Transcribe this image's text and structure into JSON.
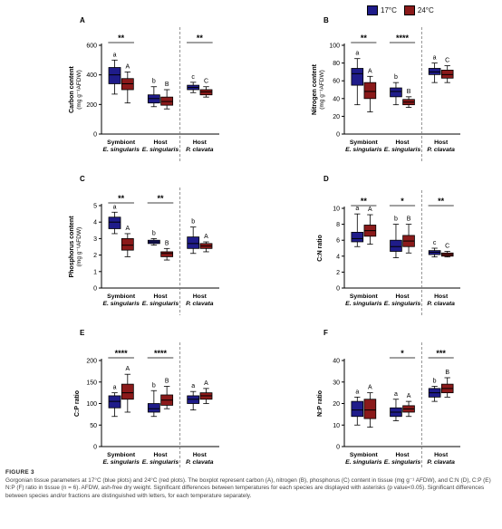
{
  "legend": [
    {
      "label": "17°C",
      "color": "#1f1c8a"
    },
    {
      "label": "24°C",
      "color": "#8b1a1a"
    }
  ],
  "caption": {
    "label": "FIGURE 3",
    "text": "Gorgonian tissue parameters at 17°C (blue plots) and 24°C (red plots). The boxplot represent carbon (A), nitrogen (B), phosphorus (C) content in tissue (mg g⁻¹ AFDW), and C:N (D), C:P (E) N:P (F) ratio in tissue (n = 6). AFDW, ash-free dry weight. Significant differences between temperatures for each species are displayed with asterisks (p value<0.05). Significant differences between species and/or fractions are distinguished with letters, for each temperature separately."
  },
  "chart_data": [
    {
      "panel": "A",
      "type": "box",
      "ylabel": [
        "Carbon content",
        "(mg g⁻¹AFDW)"
      ],
      "ylim": [
        0,
        600
      ],
      "yticks": [
        0,
        200,
        400,
        600
      ],
      "categories": [
        {
          "line1": "Symbiont",
          "line2": "E. singularis"
        },
        {
          "line1": "Host",
          "line2": "E. singularis"
        },
        {
          "line1": "Host",
          "line2": "P. clavata"
        }
      ],
      "series": [
        {
          "color": "#1f1c8a",
          "boxes": [
            [
              270,
              340,
              400,
              450,
              500
            ],
            [
              185,
              210,
              240,
              265,
              320
            ],
            [
              280,
              300,
              315,
              330,
              350
            ]
          ],
          "letters": [
            "a",
            "b",
            "c"
          ]
        },
        {
          "color": "#8b1a1a",
          "boxes": [
            [
              210,
              300,
              340,
              375,
              420
            ],
            [
              170,
              195,
              220,
              250,
              300
            ],
            [
              250,
              265,
              285,
              300,
              320
            ]
          ],
          "letters": [
            "A",
            "B",
            "C"
          ]
        }
      ],
      "sig": [
        {
          "group": 0,
          "label": "**"
        },
        {
          "group": 2,
          "label": "**"
        }
      ]
    },
    {
      "panel": "B",
      "type": "box",
      "ylabel": [
        "Nitrogen content",
        "(mg g⁻¹AFDW)"
      ],
      "ylim": [
        0,
        100
      ],
      "yticks": [
        0,
        20,
        40,
        60,
        80,
        100
      ],
      "categories": [
        {
          "line1": "Symbiont",
          "line2": "E. singularis"
        },
        {
          "line1": "Host",
          "line2": "E. singularis"
        },
        {
          "line1": "Host",
          "line2": "P. clavata"
        }
      ],
      "series": [
        {
          "color": "#1f1c8a",
          "boxes": [
            [
              33,
              55,
              68,
              74,
              85
            ],
            [
              33,
              42,
              48,
              52,
              58
            ],
            [
              58,
              67,
              70,
              74,
              80
            ]
          ],
          "letters": [
            "a",
            "b",
            "a"
          ]
        },
        {
          "color": "#8b1a1a",
          "boxes": [
            [
              25,
              40,
              48,
              58,
              65
            ],
            [
              30,
              33,
              36,
              39,
              42
            ],
            [
              58,
              63,
              67,
              72,
              77
            ]
          ],
          "letters": [
            "A",
            "B",
            "C"
          ]
        }
      ],
      "sig": [
        {
          "group": 0,
          "label": "**"
        },
        {
          "group": 1,
          "label": "****"
        }
      ]
    },
    {
      "panel": "C",
      "type": "box",
      "ylabel": [
        "Phosphorus content",
        "(mg g⁻¹AFDW)"
      ],
      "ylim": [
        0,
        5
      ],
      "yticks": [
        0,
        1,
        2,
        3,
        4,
        5
      ],
      "categories": [
        {
          "line1": "Symbiont",
          "line2": "E. singularis"
        },
        {
          "line1": "Host",
          "line2": "E. singularis"
        },
        {
          "line1": "Host",
          "line2": "P. clavata"
        }
      ],
      "series": [
        {
          "color": "#1f1c8a",
          "boxes": [
            [
              3.3,
              3.6,
              4.0,
              4.3,
              4.6
            ],
            [
              2.6,
              2.7,
              2.8,
              2.9,
              3.0
            ],
            [
              2.1,
              2.4,
              2.7,
              3.1,
              3.7
            ]
          ],
          "letters": [
            "a",
            "b",
            "b"
          ]
        },
        {
          "color": "#8b1a1a",
          "boxes": [
            [
              1.9,
              2.3,
              2.6,
              3.0,
              3.3
            ],
            [
              1.7,
              1.9,
              2.1,
              2.2,
              2.4
            ],
            [
              2.2,
              2.4,
              2.55,
              2.7,
              2.8
            ]
          ],
          "letters": [
            "A",
            "B",
            "A"
          ]
        }
      ],
      "sig": [
        {
          "group": 0,
          "label": "**"
        },
        {
          "group": 1,
          "label": "**"
        }
      ]
    },
    {
      "panel": "D",
      "type": "box",
      "ylabel": [
        "C:N ratio"
      ],
      "ylim": [
        0,
        10
      ],
      "yticks": [
        0,
        2,
        4,
        6,
        8,
        10
      ],
      "categories": [
        {
          "line1": "Symbiont",
          "line2": "E. singularis"
        },
        {
          "line1": "Host",
          "line2": "E. singularis"
        },
        {
          "line1": "Host",
          "line2": "P. clavata"
        }
      ],
      "series": [
        {
          "color": "#1f1c8a",
          "boxes": [
            [
              5.2,
              5.8,
              6.2,
              7.0,
              9.3
            ],
            [
              3.8,
              4.6,
              5.2,
              6.0,
              8.0
            ],
            [
              3.9,
              4.2,
              4.5,
              4.7,
              5.0
            ]
          ],
          "letters": [
            "a",
            "b",
            "c"
          ]
        },
        {
          "color": "#8b1a1a",
          "boxes": [
            [
              5.5,
              6.5,
              7.2,
              7.9,
              9.2
            ],
            [
              4.4,
              5.2,
              5.9,
              6.6,
              8.0
            ],
            [
              3.9,
              4.0,
              4.2,
              4.4,
              4.6
            ]
          ],
          "letters": [
            "A",
            "B",
            "C"
          ]
        }
      ],
      "sig": [
        {
          "group": 0,
          "label": "**"
        },
        {
          "group": 1,
          "label": "*"
        },
        {
          "group": 2,
          "label": "**"
        }
      ]
    },
    {
      "panel": "E",
      "type": "box",
      "ylabel": [
        "C:P ratio"
      ],
      "ylim": [
        0,
        200
      ],
      "yticks": [
        0,
        50,
        100,
        150,
        200
      ],
      "categories": [
        {
          "line1": "Symbiont",
          "line2": "E. singularis"
        },
        {
          "line1": "Host",
          "line2": "E. singularis"
        },
        {
          "line1": "Host",
          "line2": "P. clavata"
        }
      ],
      "series": [
        {
          "color": "#1f1c8a",
          "boxes": [
            [
              70,
              90,
              105,
              118,
              125
            ],
            [
              70,
              80,
              88,
              100,
              130
            ],
            [
              85,
              100,
              110,
              118,
              128
            ]
          ],
          "letters": [
            "a",
            "b",
            "a"
          ]
        },
        {
          "color": "#8b1a1a",
          "boxes": [
            [
              80,
              110,
              125,
              145,
              168
            ],
            [
              88,
              96,
              108,
              120,
              140
            ],
            [
              100,
              110,
              118,
              125,
              135
            ]
          ],
          "letters": [
            "A",
            "B",
            "A"
          ]
        }
      ],
      "sig": [
        {
          "group": 0,
          "label": "****"
        },
        {
          "group": 1,
          "label": "****"
        }
      ]
    },
    {
      "panel": "F",
      "type": "box",
      "ylabel": [
        "N:P ratio"
      ],
      "ylim": [
        0,
        40
      ],
      "yticks": [
        0,
        10,
        20,
        30,
        40
      ],
      "categories": [
        {
          "line1": "Symbiont",
          "line2": "E. singularis"
        },
        {
          "line1": "Host",
          "line2": "E. singularis"
        },
        {
          "line1": "Host",
          "line2": "P. clavata"
        }
      ],
      "series": [
        {
          "color": "#1f1c8a",
          "boxes": [
            [
              10,
              14,
              17,
              21,
              23
            ],
            [
              12,
              14,
              16,
              18,
              22
            ],
            [
              21,
              23,
              25,
              27,
              28
            ]
          ],
          "letters": [
            "a",
            "a",
            "b"
          ]
        },
        {
          "color": "#8b1a1a",
          "boxes": [
            [
              9,
              13,
              17,
              22,
              25
            ],
            [
              14,
              16,
              17.5,
              19,
              21
            ],
            [
              23,
              25,
              27,
              29,
              32
            ]
          ],
          "letters": [
            "A",
            "A",
            "B"
          ]
        }
      ],
      "sig": [
        {
          "group": 1,
          "label": "*"
        },
        {
          "group": 2,
          "label": "***"
        }
      ]
    }
  ]
}
